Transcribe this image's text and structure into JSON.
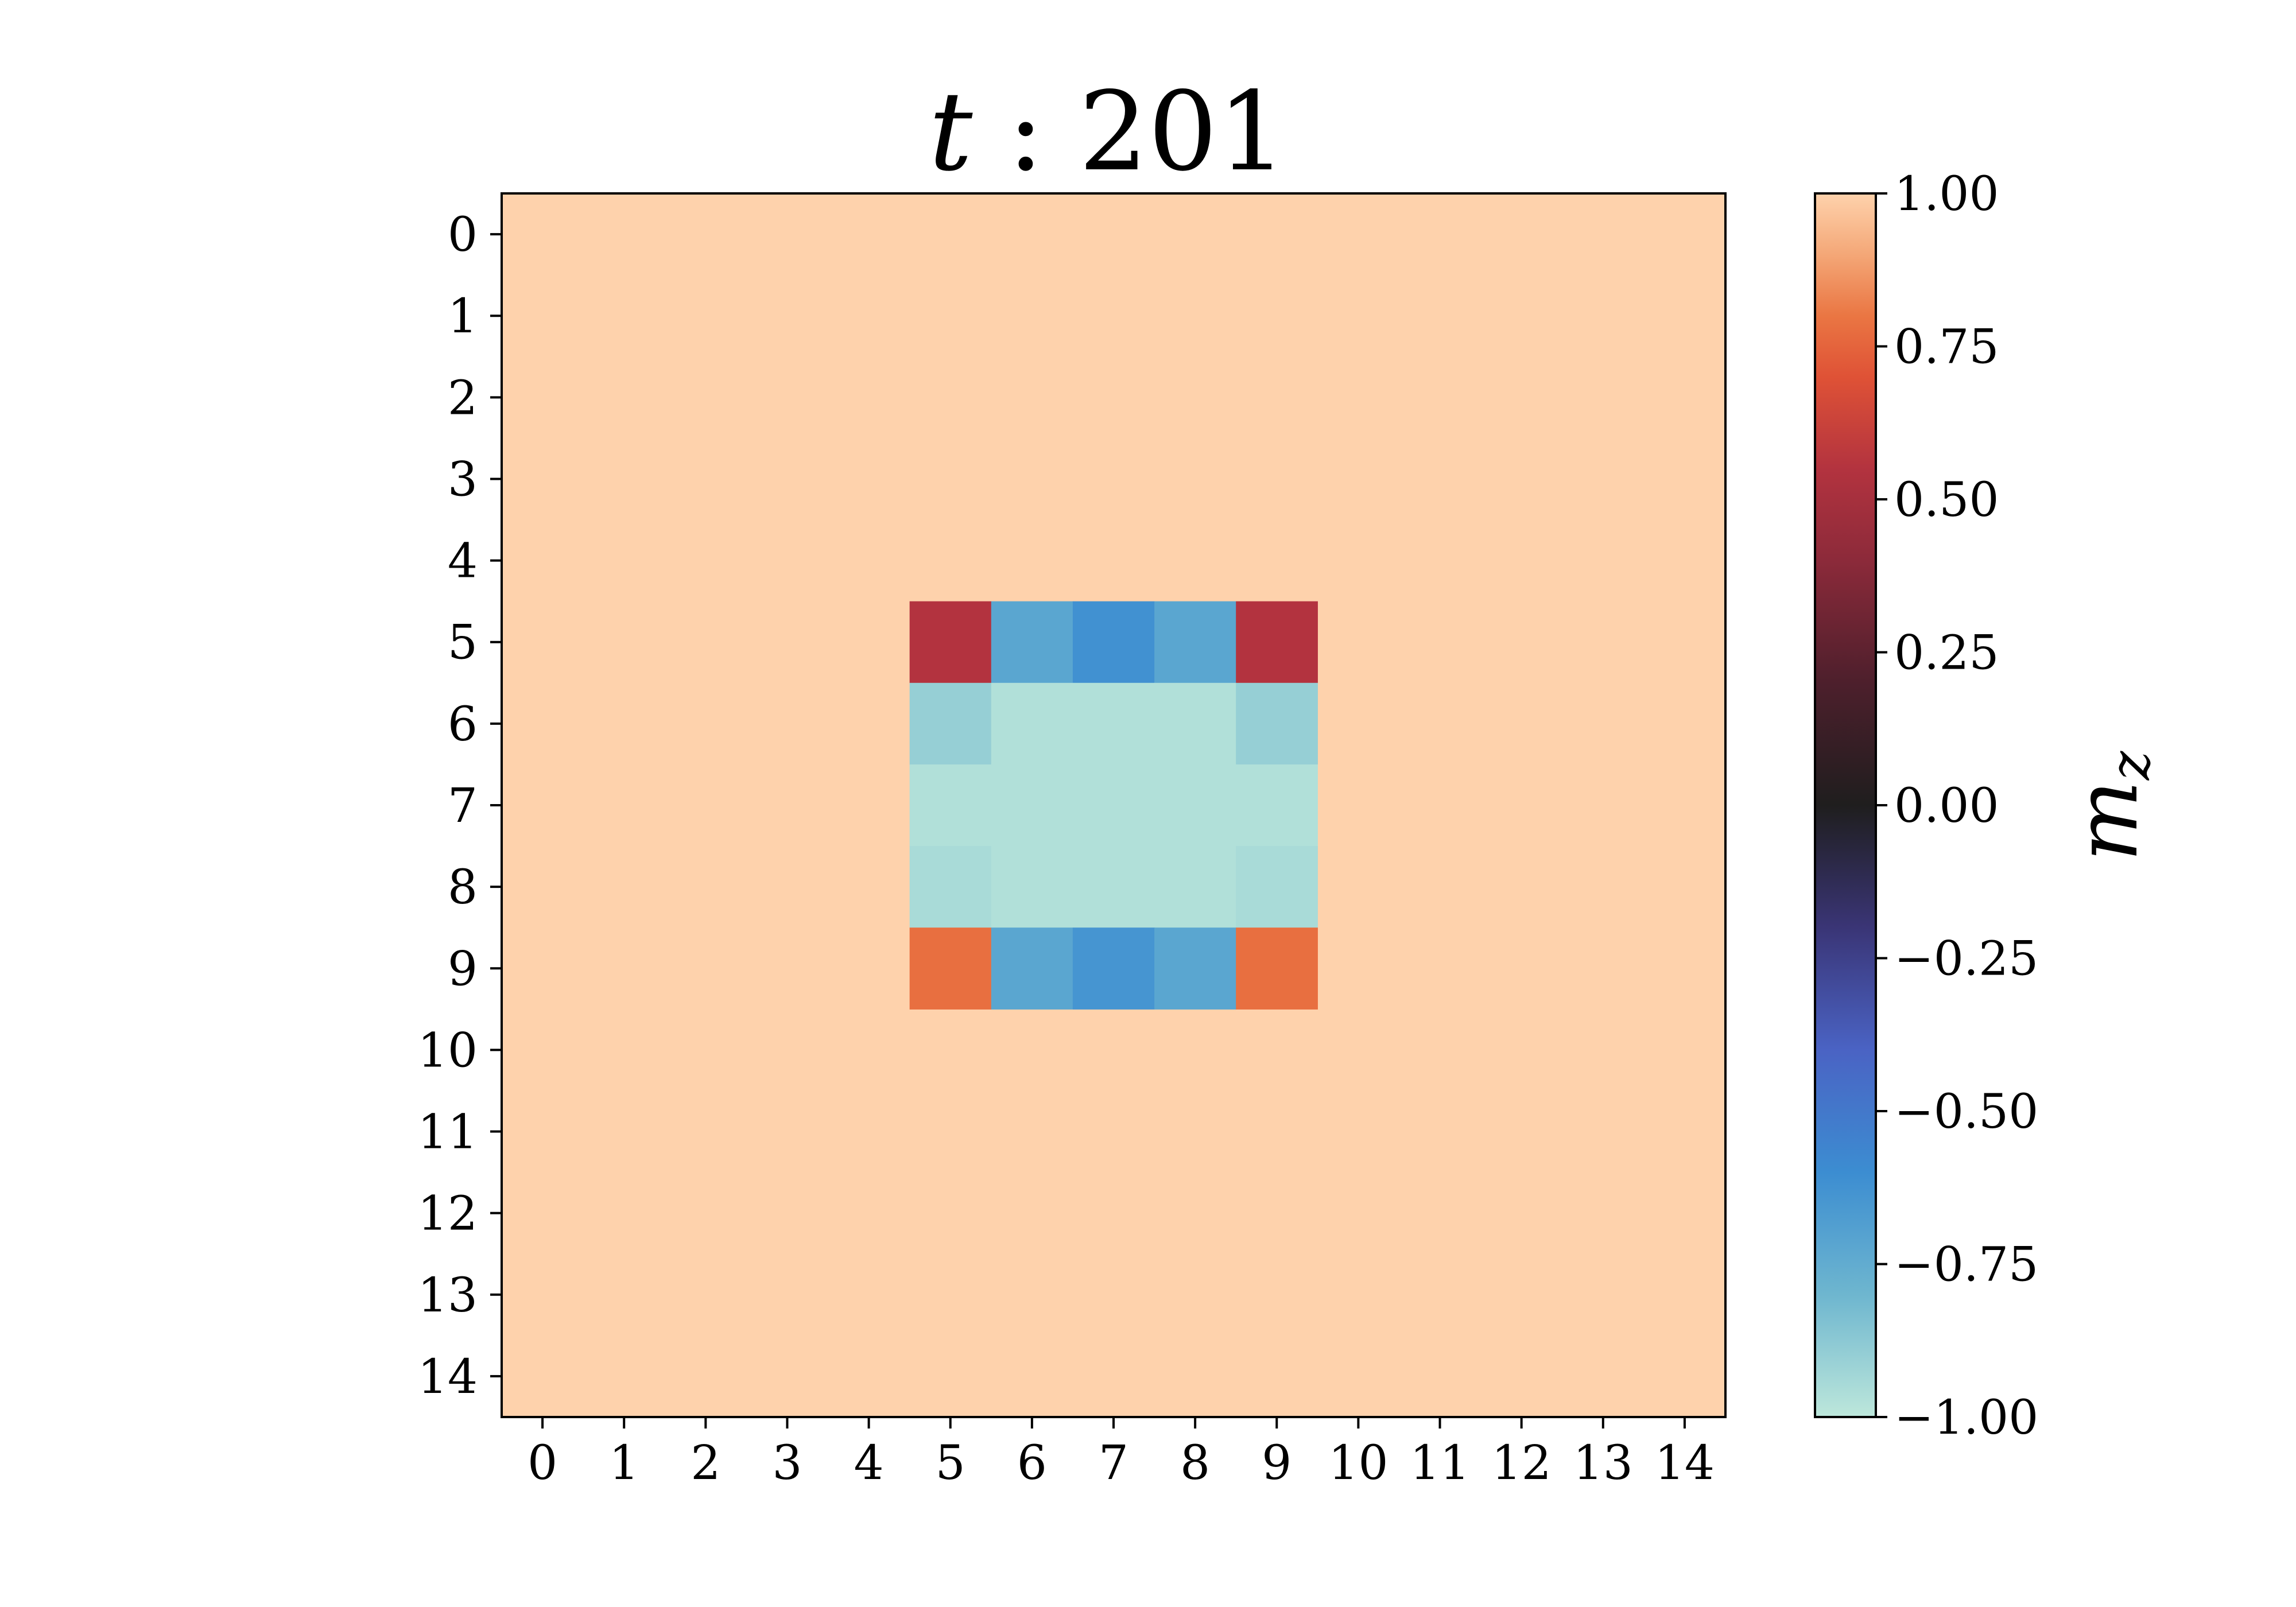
{
  "chart_data": {
    "type": "heatmap",
    "title": {
      "variable": "t",
      "separator": " : ",
      "value": "201"
    },
    "xlabel": "",
    "ylabel": "",
    "x_ticks": [
      "0",
      "1",
      "2",
      "3",
      "4",
      "5",
      "6",
      "7",
      "8",
      "9",
      "10",
      "11",
      "12",
      "13",
      "14"
    ],
    "y_ticks": [
      "0",
      "1",
      "2",
      "3",
      "4",
      "5",
      "6",
      "7",
      "8",
      "9",
      "10",
      "11",
      "12",
      "13",
      "14"
    ],
    "grid": false,
    "y_axis_direction": "top-to-bottom",
    "value_range": [
      -1.0,
      1.0
    ],
    "default_value": 1.0,
    "cells": [
      {
        "row": 5,
        "col": 5,
        "value": 0.55
      },
      {
        "row": 5,
        "col": 6,
        "value": -0.72
      },
      {
        "row": 5,
        "col": 7,
        "value": -0.62
      },
      {
        "row": 5,
        "col": 8,
        "value": -0.72
      },
      {
        "row": 5,
        "col": 9,
        "value": 0.55
      },
      {
        "row": 6,
        "col": 5,
        "value": -0.9
      },
      {
        "row": 6,
        "col": 6,
        "value": -0.97
      },
      {
        "row": 6,
        "col": 7,
        "value": -0.97
      },
      {
        "row": 6,
        "col": 8,
        "value": -0.97
      },
      {
        "row": 6,
        "col": 9,
        "value": -0.9
      },
      {
        "row": 7,
        "col": 5,
        "value": -0.97
      },
      {
        "row": 7,
        "col": 6,
        "value": -0.97
      },
      {
        "row": 7,
        "col": 7,
        "value": -0.97
      },
      {
        "row": 7,
        "col": 8,
        "value": -0.97
      },
      {
        "row": 7,
        "col": 9,
        "value": -0.97
      },
      {
        "row": 8,
        "col": 5,
        "value": -0.95
      },
      {
        "row": 8,
        "col": 6,
        "value": -0.97
      },
      {
        "row": 8,
        "col": 7,
        "value": -0.97
      },
      {
        "row": 8,
        "col": 8,
        "value": -0.97
      },
      {
        "row": 8,
        "col": 9,
        "value": -0.95
      },
      {
        "row": 9,
        "col": 5,
        "value": 0.78
      },
      {
        "row": 9,
        "col": 6,
        "value": -0.72
      },
      {
        "row": 9,
        "col": 7,
        "value": -0.64
      },
      {
        "row": 9,
        "col": 8,
        "value": -0.72
      },
      {
        "row": 9,
        "col": 9,
        "value": 0.78
      }
    ],
    "colorbar": {
      "label_main": "m",
      "label_sub": "z",
      "ticks": [
        "1.00",
        "0.75",
        "0.50",
        "0.25",
        "0.00",
        "−0.25",
        "−0.50",
        "−0.75",
        "−1.00"
      ],
      "tick_values": [
        1.0,
        0.75,
        0.5,
        0.25,
        0.0,
        -0.25,
        -0.5,
        -0.75,
        -1.0
      ],
      "colormap": "icefire",
      "color_stops": [
        {
          "v": -1.0,
          "color": "#bde7db"
        },
        {
          "v": -0.8,
          "color": "#6eb6cf"
        },
        {
          "v": -0.6,
          "color": "#3c8dd1"
        },
        {
          "v": -0.4,
          "color": "#4a63c4"
        },
        {
          "v": -0.2,
          "color": "#3a3576"
        },
        {
          "v": 0.0,
          "color": "#1f1e1e"
        },
        {
          "v": 0.2,
          "color": "#4d1f2c"
        },
        {
          "v": 0.4,
          "color": "#8c2a3a"
        },
        {
          "v": 0.55,
          "color": "#b3333f"
        },
        {
          "v": 0.7,
          "color": "#df5236"
        },
        {
          "v": 0.8,
          "color": "#ea7643"
        },
        {
          "v": 0.9,
          "color": "#f4a777"
        },
        {
          "v": 1.0,
          "color": "#fed2ac"
        }
      ]
    }
  }
}
